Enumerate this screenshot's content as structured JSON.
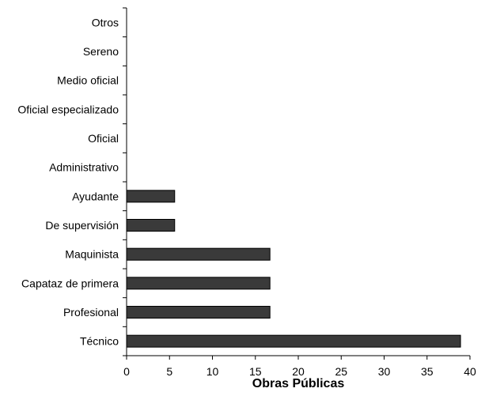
{
  "chart_data": {
    "type": "bar",
    "orientation": "horizontal",
    "xlabel": "Obras Públicas",
    "ylabel": "",
    "xlim": [
      0,
      40
    ],
    "x_ticks": [
      "0",
      "5",
      "10",
      "15",
      "20",
      "25",
      "30",
      "35",
      "40"
    ],
    "grid": false,
    "legend": "none",
    "bar_color": "#3a3a3a",
    "categories": [
      "Técnico",
      "Profesional",
      "Capataz de primera",
      "Maquinista",
      "De supervisión",
      "Ayudante",
      "Administrativo",
      "Oficial",
      "Oficial especializado",
      "Medio oficial",
      "Sereno",
      "Otros"
    ],
    "values": [
      38.9,
      16.7,
      16.7,
      16.7,
      5.6,
      5.6,
      0,
      0,
      0,
      0,
      0,
      0
    ]
  }
}
